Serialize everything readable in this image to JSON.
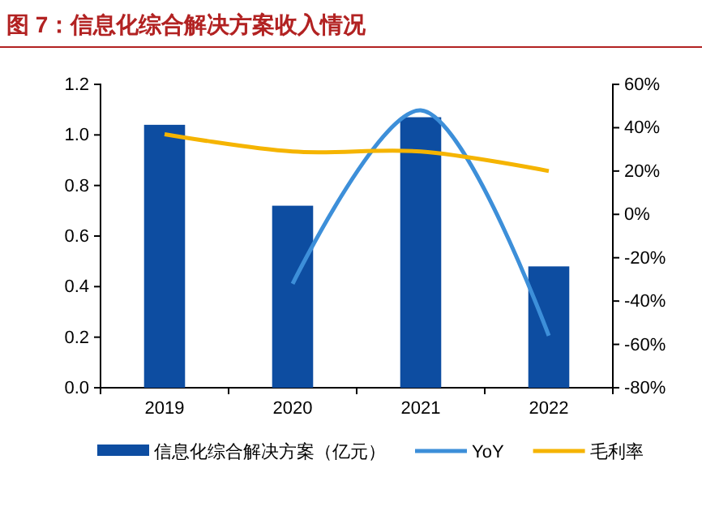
{
  "chart_data": {
    "type": "bar",
    "title": "图 7：信息化综合解决方案收入情况",
    "categories": [
      "2019",
      "2020",
      "2021",
      "2022"
    ],
    "series": [
      {
        "name": "信息化综合解决方案（亿元）",
        "color": "#0d4da1",
        "values": [
          1.04,
          0.72,
          1.07,
          0.48
        ]
      },
      {
        "name": "YoY",
        "type": "line",
        "axis": "y2",
        "color": "#3d8fd9",
        "values": [
          null,
          -32,
          48,
          -56
        ]
      },
      {
        "name": "毛利率",
        "type": "line",
        "axis": "y2",
        "color": "#f5b400",
        "values": [
          37,
          29,
          29,
          20
        ]
      }
    ],
    "ylim": [
      0,
      1.2
    ],
    "yticks": [
      {
        "value": 0,
        "label": "0.0"
      },
      0.2,
      0.4,
      0.6,
      0.8,
      {
        "value": 1,
        "label": "1.0"
      },
      1.2
    ],
    "y2lim": [
      -80,
      60
    ],
    "y2ticks": [
      {
        "value": -80,
        "label": "-80%"
      },
      {
        "value": -60,
        "label": "-60%"
      },
      {
        "value": -40,
        "label": "-40%"
      },
      {
        "value": -20,
        "label": "-20%"
      },
      {
        "value": 0,
        "label": "0%"
      },
      {
        "value": 20,
        "label": "20%"
      },
      {
        "value": 40,
        "label": "40%"
      },
      {
        "value": 60,
        "label": "60%"
      }
    ],
    "legend": "bottom",
    "grid": false,
    "marker": "none",
    "line_style": "solid"
  }
}
